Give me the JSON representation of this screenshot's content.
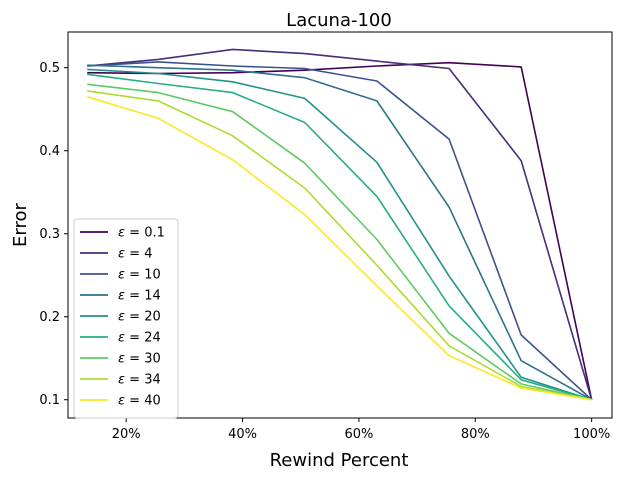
{
  "chart_data": {
    "type": "line",
    "title": "Lacuna-100",
    "xlabel": "Rewind Percent",
    "ylabel": "Error",
    "xlim": [
      10.0,
      103.5
    ],
    "ylim": [
      0.078,
      0.543
    ],
    "x_ticks": [
      {
        "value": 20,
        "label": "20%"
      },
      {
        "value": 40,
        "label": "40%"
      },
      {
        "value": 60,
        "label": "60%"
      },
      {
        "value": 80,
        "label": "80%"
      },
      {
        "value": 100,
        "label": "100%"
      }
    ],
    "y_ticks": [
      {
        "value": 0.1,
        "label": "0.1"
      },
      {
        "value": 0.2,
        "label": "0.2"
      },
      {
        "value": 0.3,
        "label": "0.3"
      },
      {
        "value": 0.4,
        "label": "0.4"
      },
      {
        "value": 0.5,
        "label": "0.5"
      }
    ],
    "x": [
      13.3,
      25.5,
      38.3,
      50.7,
      63.1,
      75.5,
      87.9,
      100
    ],
    "legend_position": "lower left",
    "grid": false,
    "series": [
      {
        "name": "= 0.1",
        "symbol": "ε",
        "color": "#440154",
        "values": [
          0.494,
          0.493,
          0.494,
          0.497,
          0.502,
          0.506,
          0.501,
          0.1
        ]
      },
      {
        "name": "= 4",
        "symbol": "ε",
        "color": "#472d7b",
        "values": [
          0.502,
          0.51,
          0.522,
          0.517,
          0.508,
          0.499,
          0.388,
          0.1
        ]
      },
      {
        "name": "= 10",
        "symbol": "ε",
        "color": "#3b528b",
        "values": [
          0.502,
          0.507,
          0.502,
          0.499,
          0.484,
          0.414,
          0.178,
          0.1
        ]
      },
      {
        "name": "= 14",
        "symbol": "ε",
        "color": "#2c728e",
        "values": [
          0.503,
          0.5,
          0.497,
          0.488,
          0.46,
          0.332,
          0.147,
          0.1
        ]
      },
      {
        "name": "= 20",
        "symbol": "ε",
        "color": "#21918c",
        "values": [
          0.498,
          0.493,
          0.483,
          0.463,
          0.386,
          0.249,
          0.127,
          0.1
        ]
      },
      {
        "name": "= 24",
        "symbol": "ε",
        "color": "#28ae80",
        "values": [
          0.492,
          0.481,
          0.47,
          0.434,
          0.345,
          0.213,
          0.124,
          0.1
        ]
      },
      {
        "name": "= 30",
        "symbol": "ε",
        "color": "#5ec962",
        "values": [
          0.48,
          0.47,
          0.447,
          0.385,
          0.293,
          0.18,
          0.119,
          0.1
        ]
      },
      {
        "name": "= 34",
        "symbol": "ε",
        "color": "#addc30",
        "values": [
          0.472,
          0.46,
          0.418,
          0.355,
          0.262,
          0.165,
          0.116,
          0.1
        ]
      },
      {
        "name": "= 40",
        "symbol": "ε",
        "color": "#fde725",
        "values": [
          0.465,
          0.439,
          0.389,
          0.323,
          0.237,
          0.153,
          0.114,
          0.1
        ]
      }
    ]
  }
}
